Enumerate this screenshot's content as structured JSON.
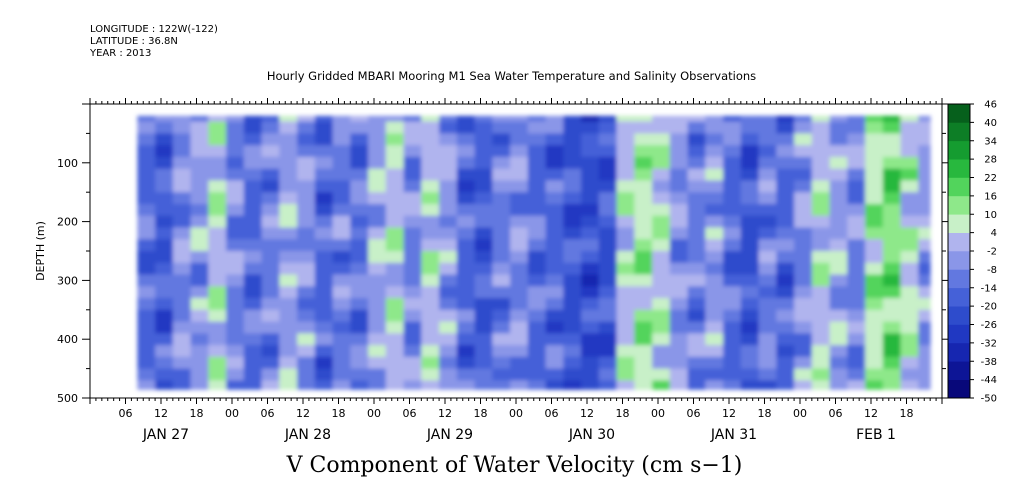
{
  "header": {
    "longitude": "LONGITUDE : 122W(-122)",
    "latitude": "LATITUDE : 36.8N",
    "year": "YEAR : 2013"
  },
  "title": "Hourly Gridded MBARI Mooring M1 Sea Water Temperature and Salinity Observations",
  "bottom_title": "V Component of Water Velocity (cm s−1)",
  "chart_data": {
    "type": "heatmap",
    "title": "Hourly Gridded MBARI Mooring M1 Sea Water Temperature and Salinity Observations",
    "variable": "V Component of Water Velocity (cm s−1)",
    "ylabel": "DEPTH (m)",
    "y_ticks": [
      100,
      200,
      300,
      400,
      500
    ],
    "y_tick_labels": [
      "100",
      "200",
      "300",
      "400",
      "500"
    ],
    "ylim": [
      500,
      0
    ],
    "xlim_hours": [
      0,
      144
    ],
    "x_tick_labels": [
      "06",
      "12",
      "18",
      "00",
      "06",
      "12",
      "18",
      "00",
      "06",
      "12",
      "18",
      "00",
      "06",
      "12",
      "18",
      "00",
      "06",
      "12",
      "18",
      "00",
      "06",
      "12",
      "18"
    ],
    "date_labels": [
      "JAN 27",
      "JAN 28",
      "JAN 29",
      "JAN 30",
      "JAN 31",
      "FEB  1"
    ],
    "colorbar": {
      "levels": [
        -50,
        -44,
        -38,
        -32,
        -26,
        -20,
        -14,
        -8,
        -2,
        4,
        10,
        16,
        22,
        28,
        34,
        40,
        46
      ],
      "labels": [
        "-50",
        "-44",
        "-38",
        "-32",
        "-26",
        "-20",
        "-14",
        "-8",
        "-2",
        "4",
        "10",
        "16",
        "22",
        "28",
        "34",
        "40",
        "46"
      ],
      "colors": [
        "#08087a",
        "#0d1596",
        "#1626b0",
        "#2038c2",
        "#2e4ccc",
        "#4561d8",
        "#6278e0",
        "#8a96e8",
        "#b0b4ee",
        "#c8f0c8",
        "#8ee88a",
        "#52d45c",
        "#28b83e",
        "#159c30",
        "#0d7e26",
        "#06601c"
      ]
    },
    "grid": false,
    "data_region": {
      "depth_top": 20,
      "depth_bottom": 485,
      "hour_start": 8,
      "hour_end": 142
    },
    "time_columns_hour": [
      8,
      11,
      14,
      17,
      20,
      23,
      26,
      29,
      32,
      35,
      38,
      41,
      44,
      47,
      50,
      53,
      56,
      59,
      62,
      65,
      68,
      71,
      74,
      77,
      80,
      83,
      86,
      89,
      92,
      95,
      98,
      101,
      104,
      107,
      110,
      113,
      116,
      119,
      122,
      125,
      128,
      131,
      134,
      137,
      140
    ],
    "column_mean_velocity_cm_s": [
      -14,
      -18,
      -6,
      -4,
      4,
      -8,
      -14,
      -10,
      -2,
      -6,
      -16,
      -10,
      -12,
      -2,
      4,
      -8,
      4,
      -4,
      -16,
      -18,
      -10,
      -6,
      -14,
      -16,
      -20,
      -22,
      -20,
      4,
      10,
      6,
      -6,
      -10,
      -4,
      -14,
      -20,
      -10,
      -16,
      -6,
      4,
      -2,
      -8,
      10,
      16,
      6,
      -4
    ],
    "depth_rows_m": [
      20,
      40,
      60,
      80,
      100,
      120,
      140,
      160,
      180,
      200,
      220,
      240,
      260,
      280,
      300,
      320,
      340,
      360,
      380,
      400,
      420,
      440,
      460,
      480
    ]
  }
}
